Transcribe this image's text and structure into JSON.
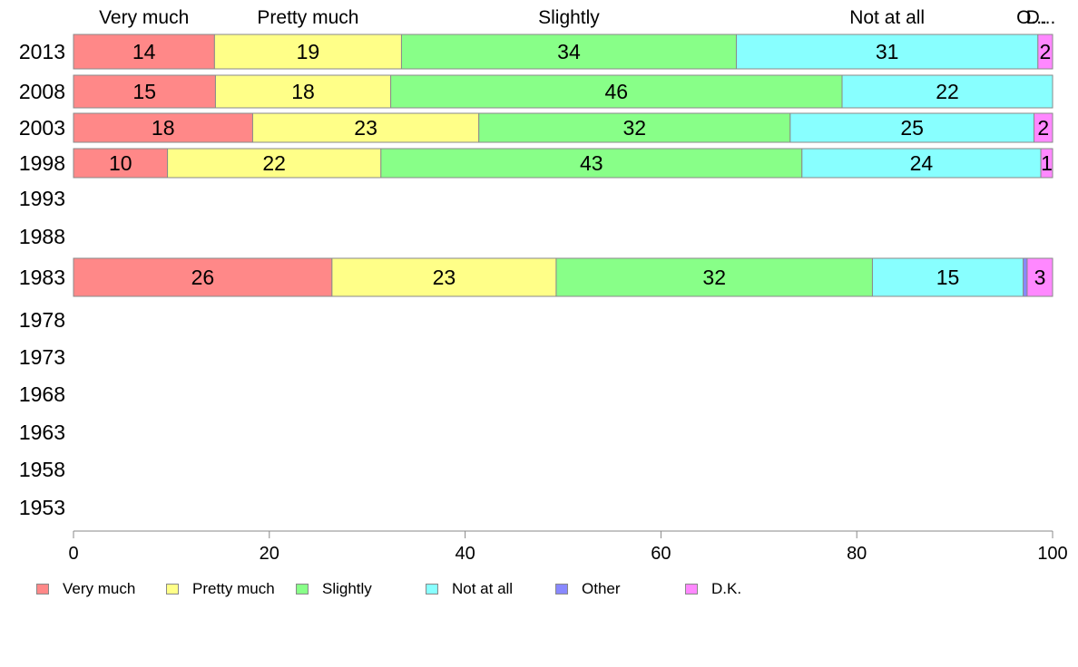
{
  "chart_data": {
    "type": "bar",
    "orientation": "horizontal",
    "stacked": true,
    "categories": [
      "2013",
      "2008",
      "2003",
      "1998",
      "1993",
      "1988",
      "1983",
      "1978",
      "1973",
      "1968",
      "1963",
      "1958",
      "1953"
    ],
    "series": [
      {
        "name": "Very much",
        "color": "#ff8888",
        "values": [
          14.4,
          14.5,
          18.3,
          9.6,
          null,
          null,
          26.4,
          null,
          null,
          null,
          null,
          null,
          null
        ],
        "labels": [
          "14",
          "15",
          "18",
          "10",
          "",
          "",
          "26",
          "",
          "",
          "",
          "",
          "",
          ""
        ]
      },
      {
        "name": "Pretty much",
        "color": "#ffff88",
        "values": [
          19.1,
          17.9,
          23.1,
          21.8,
          null,
          null,
          22.9,
          null,
          null,
          null,
          null,
          null,
          null
        ],
        "labels": [
          "19",
          "18",
          "23",
          "22",
          "",
          "",
          "23",
          "",
          "",
          "",
          "",
          "",
          ""
        ]
      },
      {
        "name": "Slightly",
        "color": "#88ff88",
        "values": [
          34.2,
          46.1,
          31.8,
          43.0,
          null,
          null,
          32.3,
          null,
          null,
          null,
          null,
          null,
          null
        ],
        "labels": [
          "34",
          "46",
          "32",
          "43",
          "",
          "",
          "32",
          "",
          "",
          "",
          "",
          "",
          ""
        ]
      },
      {
        "name": "Not at all",
        "color": "#88ffff",
        "values": [
          30.8,
          21.5,
          24.9,
          24.4,
          null,
          null,
          15.4,
          null,
          null,
          null,
          null,
          null,
          null
        ],
        "labels": [
          "31",
          "22",
          "25",
          "24",
          "",
          "",
          "15",
          "",
          "",
          "",
          "",
          "",
          ""
        ]
      },
      {
        "name": "Other",
        "color": "#8888ff",
        "values": [
          0.0,
          0.0,
          0.0,
          0.0,
          null,
          null,
          0.4,
          null,
          null,
          null,
          null,
          null,
          null
        ],
        "labels": [
          "",
          "",
          "",
          "",
          "",
          "",
          "",
          "",
          "",
          "",
          "",
          "",
          ""
        ]
      },
      {
        "name": "D.K.",
        "color": "#ff88ff",
        "values": [
          1.5,
          0.0,
          1.9,
          1.2,
          null,
          null,
          2.6,
          null,
          null,
          null,
          null,
          null,
          null
        ],
        "labels": [
          "2",
          "",
          "2",
          "1",
          "",
          "",
          "3",
          "",
          "",
          "",
          "",
          "",
          ""
        ]
      }
    ],
    "top_labels": [
      {
        "text": "Very much",
        "series": "Very much"
      },
      {
        "text": "Pretty much",
        "series": "Pretty much"
      },
      {
        "text": "Slightly",
        "series": "Slightly"
      },
      {
        "text": "Not at all",
        "series": "Not at all"
      },
      {
        "text": "O...",
        "series": "Other"
      },
      {
        "text": "D...",
        "series": "D.K."
      }
    ],
    "xlim": [
      0,
      100
    ],
    "xticks": [
      0,
      20,
      40,
      60,
      80,
      100
    ],
    "xlabel": "",
    "ylabel": "",
    "title": "",
    "grid": false,
    "legend_position": "bottom"
  },
  "legend": [
    {
      "label": "Very much",
      "color": "#ff8888"
    },
    {
      "label": "Pretty much",
      "color": "#ffff88"
    },
    {
      "label": "Slightly",
      "color": "#88ff88"
    },
    {
      "label": "Not at all",
      "color": "#88ffff"
    },
    {
      "label": "Other",
      "color": "#8888ff"
    },
    {
      "label": "D.K.",
      "color": "#ff88ff"
    }
  ]
}
